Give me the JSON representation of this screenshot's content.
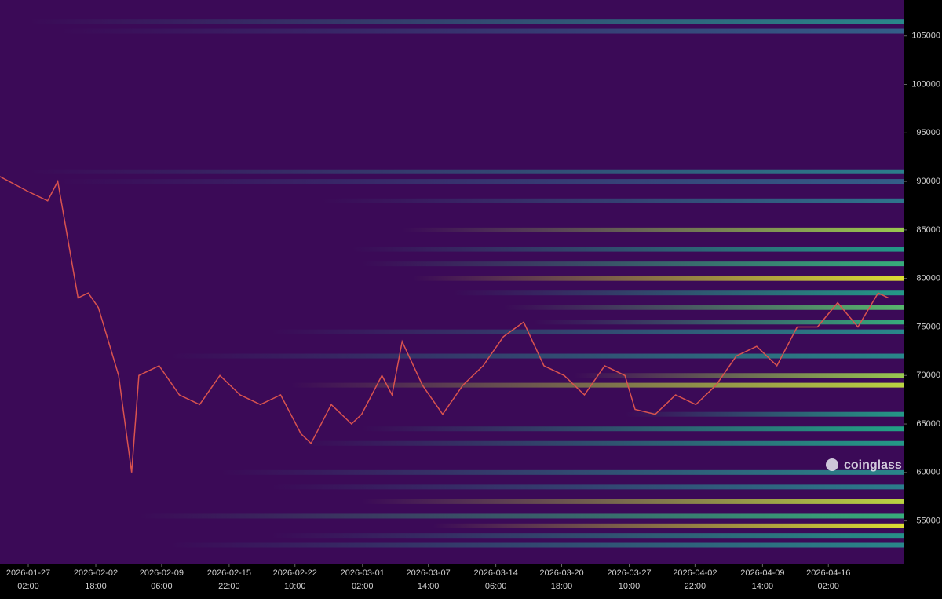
{
  "chart_data": {
    "type": "liquidation-heatmap",
    "watermark": "coinglass",
    "background": "#3b0a57",
    "colorscale": [
      "#440154",
      "#31688e",
      "#21a585",
      "#fde725"
    ],
    "xlim": [
      "2026-01-24 07:00",
      "2026-04-23 14:00"
    ],
    "xticks": [
      {
        "date": "2026-01-27",
        "time": "02:00"
      },
      {
        "date": "2026-02-02",
        "time": "18:00"
      },
      {
        "date": "2026-02-09",
        "time": "06:00"
      },
      {
        "date": "2026-02-15",
        "time": "22:00"
      },
      {
        "date": "2026-02-22",
        "time": "10:00"
      },
      {
        "date": "2026-03-01",
        "time": "02:00"
      },
      {
        "date": "2026-03-07",
        "time": "14:00"
      },
      {
        "date": "2026-03-14",
        "time": "06:00"
      },
      {
        "date": "2026-03-20",
        "time": "18:00"
      },
      {
        "date": "2026-03-27",
        "time": "10:00"
      },
      {
        "date": "2026-04-02",
        "time": "22:00"
      },
      {
        "date": "2026-04-09",
        "time": "14:00"
      },
      {
        "date": "2026-04-16",
        "time": "02:00"
      }
    ],
    "ylim": [
      50600,
      108700
    ],
    "yticks": [
      55000,
      60000,
      65000,
      70000,
      75000,
      80000,
      85000,
      90000,
      95000,
      100000,
      105000
    ],
    "bands": [
      {
        "price": 106500,
        "start": "2026-01-27 02:00",
        "intensity": 0.5
      },
      {
        "price": 105500,
        "start": "2026-01-30 00:00",
        "intensity": 0.3
      },
      {
        "price": 91000,
        "start": "2026-01-27 02:00",
        "intensity": 0.45
      },
      {
        "price": 90000,
        "start": "2026-01-30 00:00",
        "intensity": 0.3
      },
      {
        "price": 88000,
        "start": "2026-02-25 00:00",
        "intensity": 0.4
      },
      {
        "price": 85000,
        "start": "2026-03-05 00:00",
        "intensity": 0.85
      },
      {
        "price": 83000,
        "start": "2026-02-28 00:00",
        "intensity": 0.6
      },
      {
        "price": 81500,
        "start": "2026-03-01 00:00",
        "intensity": 0.7
      },
      {
        "price": 80000,
        "start": "2026-03-06 00:00",
        "intensity": 0.95
      },
      {
        "price": 78500,
        "start": "2026-03-10 00:00",
        "intensity": 0.6
      },
      {
        "price": 77000,
        "start": "2026-03-15 00:00",
        "intensity": 0.75
      },
      {
        "price": 75500,
        "start": "2026-03-18 00:00",
        "intensity": 0.7
      },
      {
        "price": 74500,
        "start": "2026-02-20 00:00",
        "intensity": 0.5
      },
      {
        "price": 72000,
        "start": "2026-02-10 00:00",
        "intensity": 0.5
      },
      {
        "price": 70000,
        "start": "2026-03-22 00:00",
        "intensity": 0.85
      },
      {
        "price": 69000,
        "start": "2026-02-22 00:00",
        "intensity": 0.9
      },
      {
        "price": 66000,
        "start": "2026-03-27 00:00",
        "intensity": 0.6
      },
      {
        "price": 64500,
        "start": "2026-03-01 00:00",
        "intensity": 0.65
      },
      {
        "price": 63000,
        "start": "2026-02-23 00:00",
        "intensity": 0.6
      },
      {
        "price": 60000,
        "start": "2026-02-15 00:00",
        "intensity": 0.5
      },
      {
        "price": 58500,
        "start": "2026-02-20 00:00",
        "intensity": 0.45
      },
      {
        "price": 57000,
        "start": "2026-03-01 00:00",
        "intensity": 0.9
      },
      {
        "price": 55500,
        "start": "2026-02-07 00:00",
        "intensity": 0.7
      },
      {
        "price": 54500,
        "start": "2026-03-08 00:00",
        "intensity": 0.95
      },
      {
        "price": 53500,
        "start": "2026-02-20 00:00",
        "intensity": 0.55
      },
      {
        "price": 52500,
        "start": "2026-02-10 00:00",
        "intensity": 0.5
      }
    ],
    "x": [
      "2026-01-24 07:00",
      "2026-01-27 00:00",
      "2026-01-29 00:00",
      "2026-01-30 00:00",
      "2026-01-31 00:00",
      "2026-02-01 00:00",
      "2026-02-02 00:00",
      "2026-02-03 00:00",
      "2026-02-05 00:00",
      "2026-02-06 07:00",
      "2026-02-07 00:00",
      "2026-02-09 00:00",
      "2026-02-11 00:00",
      "2026-02-13 00:00",
      "2026-02-15 00:00",
      "2026-02-17 00:00",
      "2026-02-19 00:00",
      "2026-02-21 00:00",
      "2026-02-23 00:00",
      "2026-02-24 00:00",
      "2026-02-26 00:00",
      "2026-02-28 00:00",
      "2026-03-01 00:00",
      "2026-03-03 00:00",
      "2026-03-04 00:00",
      "2026-03-05 00:00",
      "2026-03-07 00:00",
      "2026-03-09 00:00",
      "2026-03-11 00:00",
      "2026-03-13 00:00",
      "2026-03-15 00:00",
      "2026-03-17 00:00",
      "2026-03-19 00:00",
      "2026-03-21 00:00",
      "2026-03-23 00:00",
      "2026-03-25 00:00",
      "2026-03-27 00:00",
      "2026-03-28 00:00",
      "2026-03-30 00:00",
      "2026-04-01 00:00",
      "2026-04-03 00:00",
      "2026-04-05 00:00",
      "2026-04-07 00:00",
      "2026-04-09 00:00",
      "2026-04-11 00:00",
      "2026-04-13 00:00",
      "2026-04-15 00:00",
      "2026-04-17 00:00",
      "2026-04-19 00:00",
      "2026-04-21 00:00",
      "2026-04-22 00:00"
    ],
    "series": [
      {
        "color": "#d9534f",
        "values": [
          90500,
          89000,
          88000,
          90000,
          84000,
          78000,
          78500,
          77000,
          70000,
          60000,
          70000,
          71000,
          68000,
          67000,
          70000,
          68000,
          67000,
          68000,
          64000,
          63000,
          67000,
          65000,
          66000,
          70000,
          68000,
          73500,
          69000,
          66000,
          69000,
          71000,
          74000,
          75500,
          71000,
          70000,
          68000,
          71000,
          70000,
          66500,
          66000,
          68000,
          67000,
          69000,
          72000,
          73000,
          71000,
          75000,
          75000,
          77500,
          75000,
          78500,
          78000
        ]
      }
    ]
  }
}
